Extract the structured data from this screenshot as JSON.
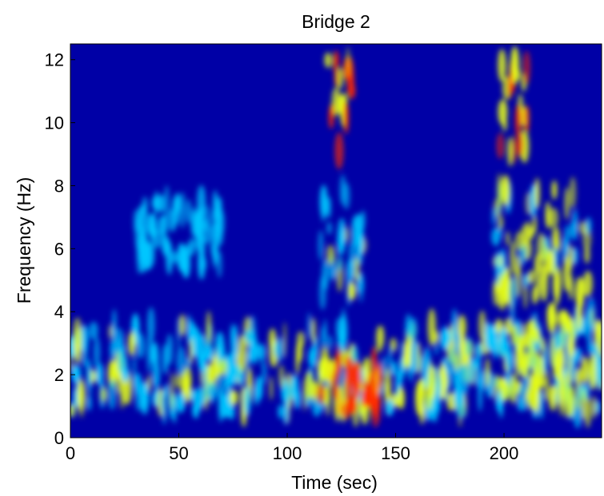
{
  "chart_data": {
    "type": "heatmap",
    "title": "Bridge 2",
    "xlabel": "Time (sec)",
    "ylabel": "Frequency (Hz)",
    "xlim": [
      0,
      245
    ],
    "ylim": [
      0,
      12.5
    ],
    "xticks": [
      0,
      50,
      100,
      150,
      200
    ],
    "yticks": [
      0,
      2,
      4,
      6,
      8,
      10,
      12
    ],
    "grid": false,
    "colormap": "jet",
    "colors": {
      "background": "#0000a6",
      "low": "#00c8ff",
      "mid": "#e6ff18",
      "high": "#ff2a00"
    },
    "regions": [
      {
        "t_range": [
          0,
          245
        ],
        "f_range": [
          0.8,
          3.6
        ],
        "intensity": "medium",
        "note": "continuous low-frequency band"
      },
      {
        "t_range": [
          115,
          145
        ],
        "f_range": [
          0.8,
          2.4
        ],
        "intensity": "high"
      },
      {
        "t_range": [
          118,
          130
        ],
        "f_range": [
          9.0,
          12.0
        ],
        "intensity": "high"
      },
      {
        "t_range": [
          115,
          135
        ],
        "f_range": [
          4.5,
          8.0
        ],
        "intensity": "medium"
      },
      {
        "t_range": [
          30,
          70
        ],
        "f_range": [
          5.5,
          7.5
        ],
        "intensity": "low"
      },
      {
        "t_range": [
          195,
          240
        ],
        "f_range": [
          4.5,
          8.0
        ],
        "intensity": "medium-high"
      },
      {
        "t_range": [
          198,
          212
        ],
        "f_range": [
          9.0,
          12.0
        ],
        "intensity": "high"
      },
      {
        "t_range": [
          195,
          245
        ],
        "f_range": [
          1.0,
          4.0
        ],
        "intensity": "medium-high"
      }
    ]
  }
}
